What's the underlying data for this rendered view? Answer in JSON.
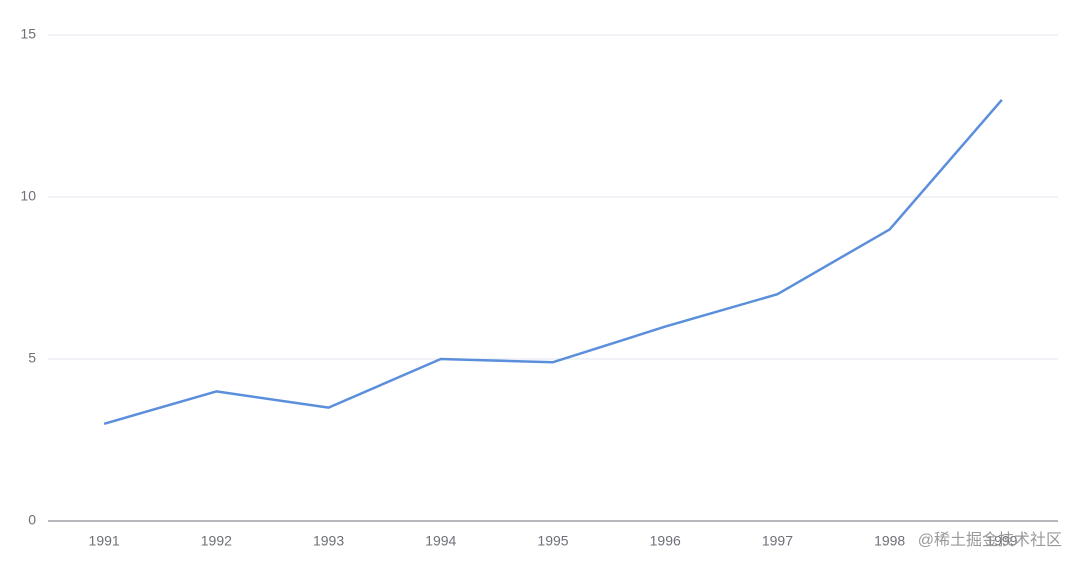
{
  "chart_data": {
    "type": "line",
    "categories": [
      "1991",
      "1992",
      "1993",
      "1994",
      "1995",
      "1996",
      "1997",
      "1998",
      "1999"
    ],
    "values": [
      3,
      4,
      3.5,
      5,
      4.9,
      6,
      7,
      9,
      13
    ],
    "color": "#5b8fdc",
    "ylim": [
      0,
      15
    ],
    "yticks": [
      0,
      5,
      10,
      15
    ],
    "grid": true,
    "watermark": "@稀土掘金技术社区"
  }
}
